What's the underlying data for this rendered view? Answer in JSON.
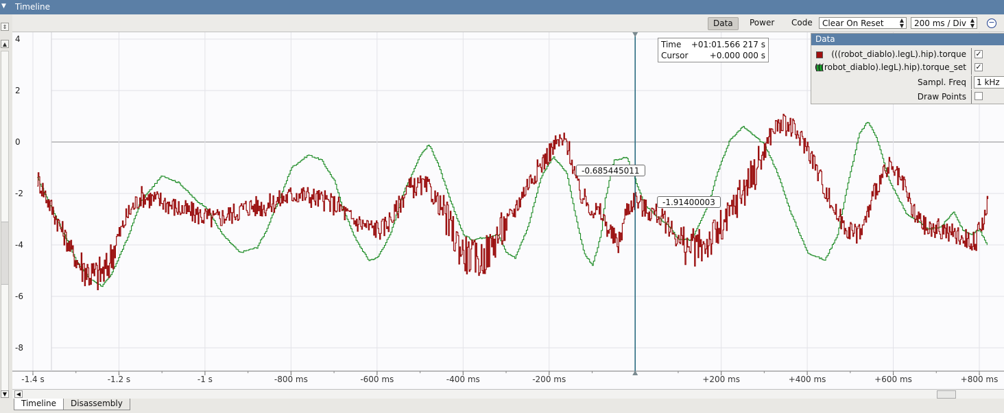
{
  "window": {
    "title": "Timeline"
  },
  "toolbar": {
    "data_label": "Data",
    "power_label": "Power",
    "code_label": "Code",
    "reset_mode": "Clear On Reset",
    "time_div": "200 ms / Div"
  },
  "cursor_box": {
    "time_label": "Time",
    "time_value": "+01:01.566 217 s",
    "cursor_label": "Cursor",
    "cursor_value": "+0.000 000 s"
  },
  "value_labels": {
    "green": "-0.685445011",
    "red": "-1.91400003"
  },
  "data_panel": {
    "title": "Data",
    "series": [
      {
        "name": "(((robot_diablo).legL).hip).torque",
        "color": "#a01010",
        "checked": "✓"
      },
      {
        "name": "(((robot_diablo).legL).hip).torque_set",
        "color": "#1a9a2a",
        "checked": "✓"
      }
    ],
    "sampl_freq_label": "Sampl. Freq",
    "sampl_freq_value": "1 kHz",
    "draw_points_label": "Draw Points"
  },
  "bottom_tabs": {
    "timeline": "Timeline",
    "disassembly": "Disassembly"
  },
  "chart_data": {
    "type": "line",
    "title": "",
    "xlabel": "",
    "ylabel": "",
    "x_unit": "ms",
    "xlim": [
      -1450,
      820
    ],
    "ylim": [
      -9,
      4.2
    ],
    "y_ticks": [
      "4",
      "2",
      "0",
      "-2",
      "-4",
      "-6",
      "-8"
    ],
    "x_ticks": [
      {
        "v": -1400,
        "label": "-1.4 s"
      },
      {
        "v": -1200,
        "label": "-1.2 s"
      },
      {
        "v": -1000,
        "label": "-1 s"
      },
      {
        "v": -800,
        "label": "-800 ms"
      },
      {
        "v": -600,
        "label": "-600 ms"
      },
      {
        "v": -400,
        "label": "-400 ms"
      },
      {
        "v": -200,
        "label": "-200 ms"
      },
      {
        "v": 200,
        "label": "+200 ms"
      },
      {
        "v": 400,
        "label": "+400 ms"
      },
      {
        "v": 600,
        "label": "+600 ms"
      },
      {
        "v": 800,
        "label": "+800 ms"
      }
    ],
    "cursor_x": 0,
    "series": [
      {
        "name": "(((robot_diablo).legL).hip).torque_set",
        "color": "#1a8a22",
        "x": [
          -1390,
          -1350,
          -1300,
          -1270,
          -1240,
          -1220,
          -1180,
          -1150,
          -1100,
          -1060,
          -1020,
          -1000,
          -960,
          -920,
          -880,
          -860,
          -820,
          -800,
          -760,
          -730,
          -700,
          -680,
          -650,
          -620,
          -600,
          -570,
          -540,
          -500,
          -480,
          -460,
          -430,
          -400,
          -380,
          -350,
          -320,
          -300,
          -280,
          -250,
          -220,
          -200,
          -190,
          -160,
          -140,
          -120,
          -100,
          -80,
          -70,
          -50,
          -20,
          0,
          20,
          50,
          80,
          100,
          130,
          170,
          190,
          220,
          250,
          300,
          330,
          360,
          400,
          440,
          470,
          490,
          520,
          540,
          560,
          590,
          630,
          650,
          680,
          710,
          740,
          760,
          780,
          800,
          820
        ],
        "y": [
          -1.4,
          -2.8,
          -4.6,
          -5.3,
          -5.6,
          -5.2,
          -3.7,
          -2.3,
          -1.3,
          -1.6,
          -2.3,
          -2.5,
          -3.6,
          -4.3,
          -4.1,
          -3.5,
          -1.9,
          -1.0,
          -0.5,
          -0.7,
          -1.5,
          -2.6,
          -3.8,
          -4.6,
          -4.5,
          -3.6,
          -2.0,
          -0.5,
          -0.1,
          -0.8,
          -2.3,
          -3.6,
          -3.8,
          -3.7,
          -3.6,
          -4.3,
          -4.5,
          -3.3,
          -1.4,
          -0.8,
          -0.6,
          -1.2,
          -2.8,
          -4.3,
          -4.8,
          -3.6,
          -2.2,
          -0.7,
          -0.6,
          -1.5,
          -2.4,
          -2.9,
          -3.3,
          -3.8,
          -3.8,
          -2.4,
          -1.2,
          0.1,
          0.6,
          -0.1,
          -1.2,
          -2.7,
          -4.3,
          -4.6,
          -3.6,
          -1.9,
          0.3,
          0.8,
          0.2,
          -1.5,
          -2.8,
          -3.0,
          -3.4,
          -3.3,
          -2.7,
          -3.4,
          -3.6,
          -3.4,
          -4.1
        ]
      },
      {
        "name": "(((robot_diablo).legL).hip).torque",
        "color": "#9a0e0e",
        "x": [
          -1390,
          -1340,
          -1300,
          -1260,
          -1230,
          -1210,
          -1180,
          -1150,
          -1100,
          -1060,
          -1020,
          -980,
          -940,
          -900,
          -860,
          -820,
          -790,
          -760,
          -720,
          -690,
          -660,
          -620,
          -590,
          -560,
          -530,
          -500,
          -480,
          -450,
          -420,
          -400,
          -380,
          -360,
          -340,
          -320,
          -300,
          -280,
          -250,
          -220,
          -200,
          -180,
          -160,
          -150,
          -130,
          -100,
          -80,
          -60,
          -40,
          -20,
          0,
          20,
          50,
          80,
          100,
          120,
          150,
          180,
          210,
          240,
          270,
          300,
          320,
          340,
          360,
          400,
          430,
          450,
          470,
          490,
          510,
          530,
          560,
          590,
          620,
          650,
          680,
          710,
          740,
          760,
          790,
          820
        ],
        "y": [
          -1.4,
          -3.2,
          -4.6,
          -5.2,
          -5.0,
          -4.0,
          -2.8,
          -2.1,
          -2.3,
          -2.6,
          -2.8,
          -3.0,
          -2.8,
          -2.5,
          -2.5,
          -2.2,
          -2.0,
          -2.1,
          -2.3,
          -2.5,
          -3.0,
          -3.3,
          -3.4,
          -2.8,
          -1.8,
          -1.7,
          -1.8,
          -2.6,
          -3.7,
          -4.3,
          -4.5,
          -4.6,
          -4.2,
          -3.6,
          -3.2,
          -2.6,
          -1.6,
          -0.9,
          -0.4,
          0.0,
          0.0,
          -0.6,
          -2.0,
          -2.6,
          -2.8,
          -3.5,
          -4.0,
          -2.6,
          -2.2,
          -2.6,
          -2.8,
          -3.3,
          -3.8,
          -4.1,
          -4.1,
          -3.7,
          -3.2,
          -2.1,
          -1.4,
          -0.3,
          0.5,
          0.7,
          0.6,
          -0.2,
          -1.4,
          -2.2,
          -2.9,
          -3.3,
          -3.6,
          -3.3,
          -1.7,
          -1.0,
          -1.6,
          -2.9,
          -3.4,
          -3.4,
          -3.6,
          -3.7,
          -3.9,
          -2.4
        ]
      }
    ]
  }
}
